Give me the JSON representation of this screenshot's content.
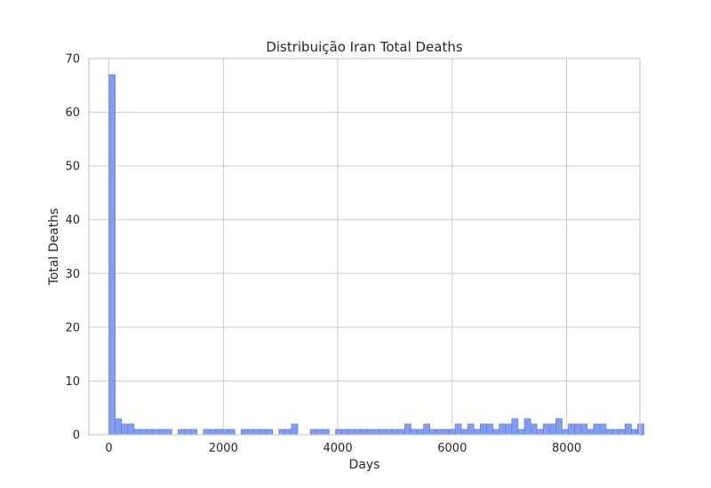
{
  "chart_data": {
    "type": "bar",
    "title": "Distribuição Iran Total Deaths",
    "xlabel": "Days",
    "ylabel": "Total Deaths",
    "xlim": [
      -350,
      9280
    ],
    "ylim": [
      0,
      70
    ],
    "xticks": [
      0,
      2000,
      4000,
      6000,
      8000
    ],
    "yticks": [
      0,
      10,
      20,
      30,
      40,
      50,
      60,
      70
    ],
    "grid": true,
    "bin_start": 0,
    "bin_width": 110,
    "values": [
      67,
      3,
      2,
      2,
      1,
      1,
      1,
      1,
      1,
      1,
      0,
      1,
      1,
      1,
      0,
      1,
      1,
      1,
      1,
      1,
      0,
      1,
      1,
      1,
      1,
      1,
      0,
      1,
      1,
      2,
      0,
      0,
      1,
      1,
      1,
      0,
      1,
      1,
      1,
      1,
      1,
      1,
      1,
      1,
      1,
      1,
      1,
      2,
      1,
      1,
      2,
      1,
      1,
      1,
      1,
      2,
      1,
      2,
      1,
      2,
      2,
      1,
      2,
      2,
      3,
      1,
      3,
      2,
      1,
      2,
      2,
      3,
      1,
      2,
      2,
      2,
      1,
      2,
      2,
      1,
      1,
      1,
      2,
      1,
      2
    ],
    "colors": {
      "bar_fill": "#809df2",
      "bar_edge": "#6a7fc4",
      "grid": "#cccccc",
      "spine": "#cccccc",
      "background": "#ffffff"
    }
  }
}
